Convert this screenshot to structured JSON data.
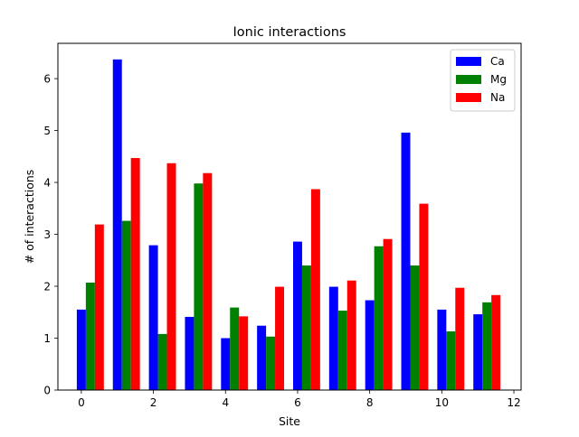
{
  "chart_data": {
    "type": "bar",
    "title": "Ionic interactions",
    "xlabel": "Site",
    "ylabel": "# of interactions",
    "xlim": [
      -0.65,
      12.2
    ],
    "ylim": [
      0,
      6.68
    ],
    "xticks": [
      0,
      2,
      4,
      6,
      8,
      10,
      12
    ],
    "yticks": [
      0,
      1,
      2,
      3,
      4,
      5,
      6
    ],
    "grid": false,
    "legend_position": "top-right",
    "bar_width": 0.25,
    "categories": [
      0,
      1,
      2,
      3,
      4,
      5,
      6,
      7,
      8,
      9,
      10,
      11
    ],
    "series": [
      {
        "name": "Ca",
        "color": "#0000ff",
        "offset": 0,
        "values": [
          1.55,
          6.37,
          2.79,
          1.41,
          1.0,
          1.24,
          2.86,
          1.99,
          1.73,
          4.96,
          1.55,
          1.46
        ]
      },
      {
        "name": "Mg",
        "color": "#008000",
        "offset": 0.25,
        "values": [
          2.07,
          3.26,
          1.08,
          3.98,
          1.59,
          1.03,
          2.4,
          1.53,
          2.77,
          2.4,
          1.13,
          1.69
        ]
      },
      {
        "name": "Na",
        "color": "#ff0000",
        "offset": 0.5,
        "values": [
          3.19,
          4.47,
          4.37,
          4.18,
          1.42,
          1.99,
          3.87,
          2.11,
          2.91,
          3.59,
          1.97,
          1.83
        ]
      }
    ]
  }
}
